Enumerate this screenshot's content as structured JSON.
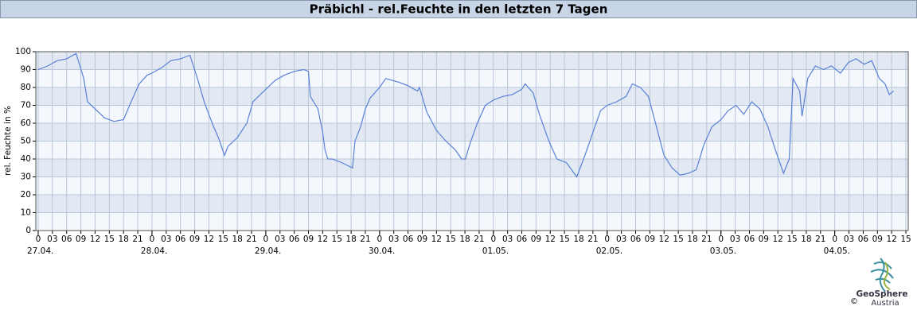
{
  "chart_data": {
    "type": "line",
    "title": "Präbichl - rel.Feuchte in den letzten 7 Tagen",
    "y_label": "rel. Feuchte in %",
    "series": [
      {
        "color": "#5a80d8",
        "x": [
          0,
          2,
          4,
          6,
          8,
          9.6,
          10.4,
          12,
          14,
          16,
          18,
          19.6,
          21.3,
          23,
          24,
          26,
          28,
          30,
          32,
          33.6,
          35,
          36,
          37,
          38,
          39.3,
          40,
          42,
          44,
          45.3,
          48,
          50,
          52,
          54,
          56,
          57,
          57.4,
          59,
          60,
          60.5,
          61.1,
          62,
          64,
          66.3,
          66.8,
          68,
          69,
          70,
          72,
          73.3,
          76,
          78,
          80,
          80.4,
          82,
          84,
          86,
          88,
          89.3,
          90.1,
          91,
          92.6,
          94.3,
          96,
          98,
          100,
          102,
          102.7,
          104.4,
          105.7,
          107.7,
          109.4,
          111.4,
          113.6,
          115.3,
          117,
          118.6,
          120,
          122,
          124,
          125.3,
          127,
          128.7,
          130.4,
          132,
          133.7,
          135.4,
          137.1,
          138.8,
          140.4,
          142.1,
          144,
          145.5,
          147.2,
          148.8,
          150.5,
          152.2,
          153.9,
          155.5,
          157.2,
          158.4,
          159.2,
          160.6,
          161.1,
          162.3,
          163.9,
          165.6,
          167.3,
          169.2,
          170.9,
          172.5,
          174.2,
          175.8,
          177.4,
          178.6,
          179.5,
          180.4
        ],
        "values": [
          90,
          92,
          95,
          96,
          99,
          85,
          72,
          68,
          63,
          61,
          62,
          72,
          82,
          87,
          88,
          91,
          95,
          96,
          98,
          85,
          72,
          65,
          58,
          52,
          42,
          47,
          52,
          60,
          72,
          79,
          84,
          87,
          89,
          90,
          89,
          75,
          68,
          55,
          45,
          40,
          40,
          38,
          35,
          50,
          58,
          68,
          74,
          80,
          85,
          83,
          81,
          78,
          80,
          66,
          56,
          50,
          45,
          40,
          40,
          48,
          60,
          70,
          73,
          75,
          76,
          79,
          82,
          77,
          65,
          50,
          40,
          38,
          30,
          42,
          55,
          67,
          70,
          72,
          75,
          82,
          80,
          75,
          58,
          42,
          35,
          31,
          32,
          34,
          48,
          58,
          62,
          67,
          70,
          65,
          72,
          68,
          58,
          45,
          32,
          40,
          85,
          78,
          64,
          85,
          92,
          90,
          92,
          88,
          94,
          96,
          93,
          95,
          85,
          82,
          76,
          78
        ]
      }
    ],
    "xlim": [
      -0.5,
      183.5
    ],
    "ylim": [
      0,
      100
    ],
    "yticks": [
      0,
      10,
      20,
      30,
      40,
      50,
      60,
      70,
      80,
      90,
      100
    ],
    "xticks": [
      0,
      {
        "value": 3,
        "label": "03"
      },
      {
        "value": 6,
        "label": "06"
      },
      {
        "value": 9,
        "label": "09"
      },
      12,
      15,
      18,
      21,
      {
        "value": 24,
        "label": "0"
      },
      {
        "value": 27,
        "label": "03"
      },
      {
        "value": 30,
        "label": "06"
      },
      {
        "value": 33,
        "label": "09"
      },
      {
        "value": 36,
        "label": "12"
      },
      {
        "value": 39,
        "label": "15"
      },
      {
        "value": 42,
        "label": "18"
      },
      {
        "value": 45,
        "label": "21"
      },
      {
        "value": 48,
        "label": "0"
      },
      {
        "value": 51,
        "label": "03"
      },
      {
        "value": 54,
        "label": "06"
      },
      {
        "value": 57,
        "label": "09"
      },
      {
        "value": 60,
        "label": "12"
      },
      {
        "value": 63,
        "label": "15"
      },
      {
        "value": 66,
        "label": "18"
      },
      {
        "value": 69,
        "label": "21"
      },
      {
        "value": 72,
        "label": "0"
      },
      {
        "value": 75,
        "label": "03"
      },
      {
        "value": 78,
        "label": "06"
      },
      {
        "value": 81,
        "label": "09"
      },
      {
        "value": 84,
        "label": "12"
      },
      {
        "value": 87,
        "label": "15"
      },
      {
        "value": 90,
        "label": "18"
      },
      {
        "value": 93,
        "label": "21"
      },
      {
        "value": 96,
        "label": "0"
      },
      {
        "value": 99,
        "label": "03"
      },
      {
        "value": 102,
        "label": "06"
      },
      {
        "value": 105,
        "label": "09"
      },
      {
        "value": 108,
        "label": "12"
      },
      {
        "value": 111,
        "label": "15"
      },
      {
        "value": 114,
        "label": "18"
      },
      {
        "value": 117,
        "label": "21"
      },
      {
        "value": 120,
        "label": "0"
      },
      {
        "value": 123,
        "label": "03"
      },
      {
        "value": 126,
        "label": "06"
      },
      {
        "value": 129,
        "label": "09"
      },
      {
        "value": 132,
        "label": "12"
      },
      {
        "value": 135,
        "label": "15"
      },
      {
        "value": 138,
        "label": "18"
      },
      {
        "value": 141,
        "label": "21"
      },
      {
        "value": 144,
        "label": "0"
      },
      {
        "value": 147,
        "label": "03"
      },
      {
        "value": 150,
        "label": "06"
      },
      {
        "value": 153,
        "label": "09"
      },
      {
        "value": 156,
        "label": "12"
      },
      {
        "value": 159,
        "label": "15"
      },
      {
        "value": 162,
        "label": "18"
      },
      {
        "value": 165,
        "label": "21"
      },
      {
        "value": 168,
        "label": "0"
      },
      {
        "value": 171,
        "label": "03"
      },
      {
        "value": 174,
        "label": "06"
      },
      {
        "value": 177,
        "label": "09"
      },
      {
        "value": 180,
        "label": "12"
      },
      {
        "value": 183,
        "label": "15"
      }
    ],
    "date_labels": [
      {
        "value": 0,
        "label": "27.04."
      },
      {
        "value": 24,
        "label": "28.04."
      },
      {
        "value": 48,
        "label": "29.04."
      },
      {
        "value": 72,
        "label": "30.04."
      },
      {
        "value": 96,
        "label": "01.05."
      },
      {
        "value": 120,
        "label": "02.05."
      },
      {
        "value": 144,
        "label": "03.05."
      },
      {
        "value": 168,
        "label": "04.05."
      }
    ],
    "grid": true
  },
  "logo": {
    "name": "GeoSphere",
    "subtitle": "Austria",
    "copyright": "©"
  }
}
